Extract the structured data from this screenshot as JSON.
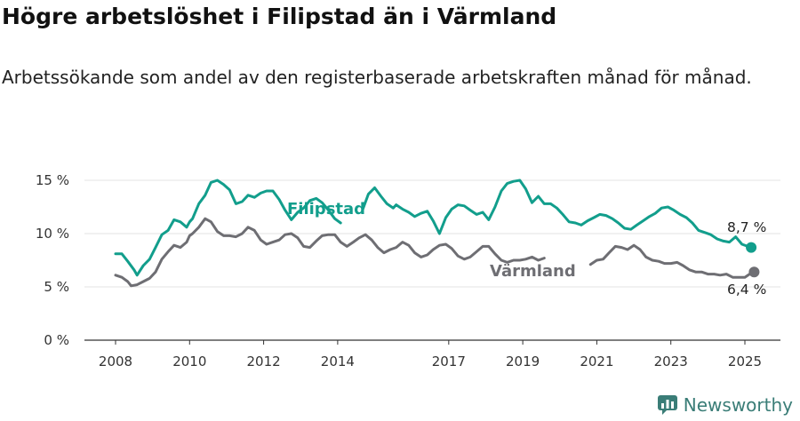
{
  "title": "Högre arbetslöshet i Filipstad än i Värmland",
  "subtitle": "Arbetssökande som andel av den registerbaserade arbetskraften månad för månad.",
  "brand": "Newsworthy",
  "colors": {
    "filipstad": "#129e8c",
    "varmland": "#6e6e73",
    "grid": "#e3e3e3",
    "axis": "#333333",
    "brand": "#3a7d77"
  },
  "chart_data": {
    "type": "line",
    "title": "",
    "xlabel": "",
    "ylabel": "",
    "xlim": [
      2008,
      2025.25
    ],
    "ylim": [
      0,
      15
    ],
    "grid": true,
    "x_ticks": [
      2008,
      2010,
      2012,
      2014,
      2017,
      2019,
      2021,
      2023,
      2025
    ],
    "x_tick_labels": [
      "2008",
      "2010",
      "2012",
      "2014",
      "2017",
      "2019",
      "2021",
      "2023",
      "2025"
    ],
    "y_ticks": [
      0,
      5,
      10,
      15
    ],
    "y_tick_labels": [
      "0 %",
      "5 %",
      "10 %",
      "15 %"
    ],
    "series": [
      {
        "name": "Filipstad",
        "end_label": "8,7 %",
        "points": [
          [
            2008.0,
            8.1
          ],
          [
            2008.17,
            8.1
          ],
          [
            2008.33,
            7.4
          ],
          [
            2008.5,
            6.6
          ],
          [
            2008.58,
            6.1
          ],
          [
            2008.75,
            7.0
          ],
          [
            2008.92,
            7.6
          ],
          [
            2009.08,
            8.7
          ],
          [
            2009.25,
            9.9
          ],
          [
            2009.42,
            10.3
          ],
          [
            2009.58,
            11.3
          ],
          [
            2009.75,
            11.1
          ],
          [
            2009.92,
            10.6
          ],
          [
            2010.0,
            11.1
          ],
          [
            2010.08,
            11.4
          ],
          [
            2010.25,
            12.8
          ],
          [
            2010.42,
            13.6
          ],
          [
            2010.58,
            14.8
          ],
          [
            2010.75,
            15.0
          ],
          [
            2010.92,
            14.6
          ],
          [
            2011.08,
            14.1
          ],
          [
            2011.25,
            12.8
          ],
          [
            2011.42,
            13.0
          ],
          [
            2011.58,
            13.6
          ],
          [
            2011.75,
            13.4
          ],
          [
            2011.92,
            13.8
          ],
          [
            2012.08,
            14.0
          ],
          [
            2012.25,
            14.0
          ],
          [
            2012.42,
            13.2
          ],
          [
            2012.58,
            12.2
          ],
          [
            2012.75,
            11.3
          ],
          [
            2012.92,
            12.0
          ],
          [
            2013.08,
            12.4
          ],
          [
            2013.25,
            13.1
          ],
          [
            2013.42,
            13.3
          ],
          [
            2013.58,
            12.9
          ],
          [
            2013.75,
            12.2
          ],
          [
            2013.92,
            11.4
          ],
          [
            2014.08,
            11.0
          ]
        ],
        "points_b": [
          [
            2014.67,
            12.2
          ],
          [
            2014.83,
            13.7
          ],
          [
            2015.0,
            14.3
          ],
          [
            2015.17,
            13.5
          ],
          [
            2015.33,
            12.8
          ],
          [
            2015.5,
            12.4
          ],
          [
            2015.58,
            12.7
          ],
          [
            2015.75,
            12.3
          ],
          [
            2015.92,
            12.0
          ],
          [
            2016.08,
            11.6
          ],
          [
            2016.25,
            11.9
          ],
          [
            2016.42,
            12.1
          ],
          [
            2016.58,
            11.2
          ],
          [
            2016.75,
            10.0
          ],
          [
            2016.92,
            11.5
          ],
          [
            2017.08,
            12.3
          ],
          [
            2017.25,
            12.7
          ],
          [
            2017.42,
            12.6
          ],
          [
            2017.58,
            12.2
          ],
          [
            2017.75,
            11.8
          ],
          [
            2017.92,
            12.0
          ],
          [
            2018.08,
            11.3
          ],
          [
            2018.25,
            12.5
          ],
          [
            2018.42,
            14.0
          ],
          [
            2018.58,
            14.7
          ],
          [
            2018.75,
            14.9
          ],
          [
            2018.92,
            15.0
          ],
          [
            2019.08,
            14.2
          ],
          [
            2019.25,
            12.9
          ],
          [
            2019.42,
            13.5
          ],
          [
            2019.58,
            12.8
          ],
          [
            2019.75,
            12.8
          ],
          [
            2019.92,
            12.4
          ],
          [
            2020.08,
            11.8
          ],
          [
            2020.25,
            11.1
          ],
          [
            2020.42,
            11.0
          ],
          [
            2020.58,
            10.8
          ],
          [
            2020.75,
            11.2
          ],
          [
            2020.92,
            11.5
          ],
          [
            2021.08,
            11.8
          ],
          [
            2021.25,
            11.7
          ],
          [
            2021.42,
            11.4
          ],
          [
            2021.58,
            11.0
          ],
          [
            2021.75,
            10.5
          ],
          [
            2021.92,
            10.4
          ],
          [
            2022.08,
            10.8
          ],
          [
            2022.25,
            11.2
          ],
          [
            2022.42,
            11.6
          ],
          [
            2022.58,
            11.9
          ],
          [
            2022.75,
            12.4
          ],
          [
            2022.92,
            12.5
          ],
          [
            2023.08,
            12.2
          ],
          [
            2023.25,
            11.8
          ],
          [
            2023.42,
            11.5
          ],
          [
            2023.58,
            11.0
          ],
          [
            2023.75,
            10.3
          ],
          [
            2023.92,
            10.1
          ],
          [
            2024.08,
            9.9
          ],
          [
            2024.25,
            9.5
          ],
          [
            2024.42,
            9.3
          ],
          [
            2024.58,
            9.2
          ],
          [
            2024.75,
            9.7
          ],
          [
            2024.92,
            9.0
          ],
          [
            2025.08,
            8.8
          ],
          [
            2025.17,
            8.7
          ]
        ]
      },
      {
        "name": "Värmland",
        "end_label": "6,4 %",
        "points": [
          [
            2008.0,
            6.1
          ],
          [
            2008.17,
            5.9
          ],
          [
            2008.33,
            5.5
          ],
          [
            2008.42,
            5.1
          ],
          [
            2008.58,
            5.2
          ],
          [
            2008.75,
            5.5
          ],
          [
            2008.92,
            5.8
          ],
          [
            2009.08,
            6.4
          ],
          [
            2009.25,
            7.6
          ],
          [
            2009.42,
            8.3
          ],
          [
            2009.58,
            8.9
          ],
          [
            2009.75,
            8.7
          ],
          [
            2009.92,
            9.2
          ],
          [
            2010.0,
            9.8
          ],
          [
            2010.08,
            10.0
          ],
          [
            2010.25,
            10.6
          ],
          [
            2010.42,
            11.4
          ],
          [
            2010.58,
            11.1
          ],
          [
            2010.75,
            10.2
          ],
          [
            2010.92,
            9.8
          ],
          [
            2011.08,
            9.8
          ],
          [
            2011.25,
            9.7
          ],
          [
            2011.42,
            10.0
          ],
          [
            2011.58,
            10.6
          ],
          [
            2011.75,
            10.3
          ],
          [
            2011.92,
            9.4
          ],
          [
            2012.08,
            9.0
          ],
          [
            2012.25,
            9.2
          ],
          [
            2012.42,
            9.4
          ],
          [
            2012.58,
            9.9
          ],
          [
            2012.75,
            10.0
          ],
          [
            2012.92,
            9.6
          ],
          [
            2013.08,
            8.8
          ],
          [
            2013.25,
            8.7
          ],
          [
            2013.42,
            9.3
          ],
          [
            2013.58,
            9.8
          ],
          [
            2013.75,
            9.9
          ],
          [
            2013.92,
            9.9
          ],
          [
            2014.08,
            9.2
          ],
          [
            2014.25,
            8.8
          ],
          [
            2014.42,
            9.2
          ],
          [
            2014.58,
            9.6
          ],
          [
            2014.75,
            9.9
          ],
          [
            2014.92,
            9.4
          ],
          [
            2015.08,
            8.7
          ],
          [
            2015.25,
            8.2
          ],
          [
            2015.42,
            8.5
          ],
          [
            2015.58,
            8.7
          ],
          [
            2015.75,
            9.2
          ],
          [
            2015.92,
            8.9
          ],
          [
            2016.08,
            8.2
          ],
          [
            2016.25,
            7.8
          ],
          [
            2016.42,
            8.0
          ],
          [
            2016.58,
            8.5
          ],
          [
            2016.75,
            8.9
          ],
          [
            2016.92,
            9.0
          ],
          [
            2017.08,
            8.6
          ],
          [
            2017.25,
            7.9
          ],
          [
            2017.42,
            7.6
          ],
          [
            2017.58,
            7.8
          ],
          [
            2017.75,
            8.3
          ],
          [
            2017.92,
            8.8
          ],
          [
            2018.08,
            8.8
          ],
          [
            2018.25,
            8.1
          ],
          [
            2018.42,
            7.5
          ],
          [
            2018.58,
            7.3
          ],
          [
            2018.75,
            7.5
          ],
          [
            2018.92,
            7.5
          ],
          [
            2019.08,
            7.6
          ],
          [
            2019.25,
            7.8
          ],
          [
            2019.42,
            7.5
          ],
          [
            2019.58,
            7.7
          ]
        ],
        "points_b": [
          [
            2020.83,
            7.1
          ],
          [
            2021.0,
            7.5
          ],
          [
            2021.17,
            7.6
          ],
          [
            2021.33,
            8.2
          ],
          [
            2021.5,
            8.8
          ],
          [
            2021.67,
            8.7
          ],
          [
            2021.83,
            8.5
          ],
          [
            2022.0,
            8.9
          ],
          [
            2022.17,
            8.5
          ],
          [
            2022.33,
            7.8
          ],
          [
            2022.5,
            7.5
          ],
          [
            2022.67,
            7.4
          ],
          [
            2022.83,
            7.2
          ],
          [
            2023.0,
            7.2
          ],
          [
            2023.17,
            7.3
          ],
          [
            2023.33,
            7.0
          ],
          [
            2023.5,
            6.6
          ],
          [
            2023.67,
            6.4
          ],
          [
            2023.83,
            6.4
          ],
          [
            2024.0,
            6.2
          ],
          [
            2024.17,
            6.2
          ],
          [
            2024.33,
            6.1
          ],
          [
            2024.5,
            6.2
          ],
          [
            2024.67,
            5.9
          ],
          [
            2024.83,
            5.9
          ],
          [
            2025.0,
            5.9
          ],
          [
            2025.17,
            6.3
          ],
          [
            2025.25,
            6.4
          ]
        ]
      }
    ]
  }
}
